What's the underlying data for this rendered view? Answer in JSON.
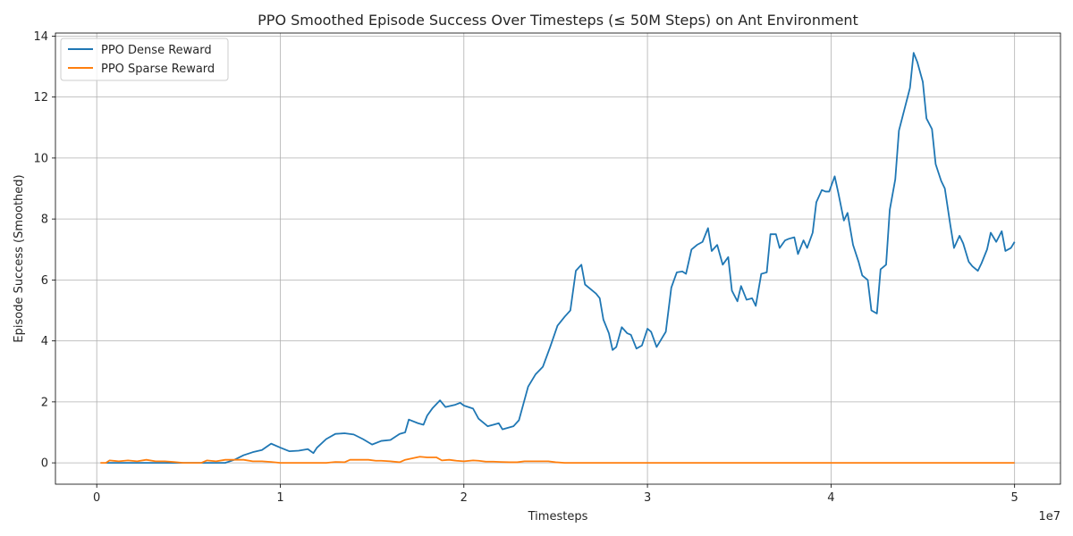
{
  "chart_data": {
    "type": "line",
    "title": "PPO Smoothed Episode Success Over Timesteps (≤ 50M Steps) on Ant Environment",
    "xlabel": "Timesteps",
    "ylabel": "Episode Success (Smoothed)",
    "x_offset_label": "1e7",
    "xlim": [
      -2250000,
      52500000
    ],
    "ylim": [
      -0.7,
      14.1
    ],
    "x_ticks": [
      0,
      10000000,
      20000000,
      30000000,
      40000000,
      50000000
    ],
    "x_tick_labels": [
      "0",
      "1",
      "2",
      "3",
      "4",
      "5"
    ],
    "y_ticks": [
      0,
      2,
      4,
      6,
      8,
      10,
      12,
      14
    ],
    "y_tick_labels": [
      "0",
      "2",
      "4",
      "6",
      "8",
      "10",
      "12",
      "14"
    ],
    "grid": true,
    "legend_position": "top-left",
    "series": [
      {
        "name": "PPO Dense Reward",
        "color": "#1f77b4",
        "points": [
          [
            500000,
            0
          ],
          [
            1000000,
            0
          ],
          [
            2000000,
            0
          ],
          [
            3000000,
            0
          ],
          [
            4000000,
            0
          ],
          [
            5000000,
            0
          ],
          [
            6000000,
            0
          ],
          [
            7000000,
            0
          ],
          [
            7500000,
            0.1
          ],
          [
            8000000,
            0.25
          ],
          [
            8500000,
            0.35
          ],
          [
            9000000,
            0.42
          ],
          [
            9500000,
            0.63
          ],
          [
            10000000,
            0.5
          ],
          [
            10500000,
            0.38
          ],
          [
            11000000,
            0.4
          ],
          [
            11500000,
            0.45
          ],
          [
            11800000,
            0.32
          ],
          [
            12000000,
            0.5
          ],
          [
            12500000,
            0.78
          ],
          [
            13000000,
            0.95
          ],
          [
            13500000,
            0.97
          ],
          [
            14000000,
            0.93
          ],
          [
            14500000,
            0.78
          ],
          [
            15000000,
            0.6
          ],
          [
            15500000,
            0.72
          ],
          [
            16000000,
            0.75
          ],
          [
            16500000,
            0.95
          ],
          [
            16800000,
            1.0
          ],
          [
            17000000,
            1.42
          ],
          [
            17500000,
            1.3
          ],
          [
            17800000,
            1.25
          ],
          [
            18000000,
            1.55
          ],
          [
            18300000,
            1.8
          ],
          [
            18700000,
            2.05
          ],
          [
            19000000,
            1.83
          ],
          [
            19500000,
            1.9
          ],
          [
            19800000,
            1.97
          ],
          [
            20000000,
            1.88
          ],
          [
            20500000,
            1.78
          ],
          [
            20800000,
            1.45
          ],
          [
            21300000,
            1.2
          ],
          [
            21600000,
            1.25
          ],
          [
            21900000,
            1.3
          ],
          [
            22100000,
            1.1
          ],
          [
            22400000,
            1.15
          ],
          [
            22700000,
            1.2
          ],
          [
            23000000,
            1.4
          ],
          [
            23500000,
            2.5
          ],
          [
            23900000,
            2.9
          ],
          [
            24300000,
            3.15
          ],
          [
            24700000,
            3.8
          ],
          [
            25100000,
            4.5
          ],
          [
            25500000,
            4.8
          ],
          [
            25800000,
            5.0
          ],
          [
            26100000,
            6.3
          ],
          [
            26400000,
            6.5
          ],
          [
            26600000,
            5.85
          ],
          [
            26900000,
            5.7
          ],
          [
            27200000,
            5.55
          ],
          [
            27400000,
            5.4
          ],
          [
            27600000,
            4.7
          ],
          [
            27900000,
            4.25
          ],
          [
            28100000,
            3.7
          ],
          [
            28300000,
            3.8
          ],
          [
            28600000,
            4.45
          ],
          [
            28900000,
            4.25
          ],
          [
            29100000,
            4.2
          ],
          [
            29400000,
            3.75
          ],
          [
            29700000,
            3.85
          ],
          [
            30000000,
            4.4
          ],
          [
            30200000,
            4.3
          ],
          [
            30500000,
            3.8
          ],
          [
            30800000,
            4.1
          ],
          [
            31000000,
            4.3
          ],
          [
            31300000,
            5.75
          ],
          [
            31600000,
            6.25
          ],
          [
            31900000,
            6.28
          ],
          [
            32100000,
            6.2
          ],
          [
            32400000,
            7.0
          ],
          [
            32700000,
            7.15
          ],
          [
            33000000,
            7.25
          ],
          [
            33300000,
            7.7
          ],
          [
            33500000,
            6.95
          ],
          [
            33800000,
            7.15
          ],
          [
            34100000,
            6.5
          ],
          [
            34400000,
            6.75
          ],
          [
            34600000,
            5.65
          ],
          [
            34900000,
            5.3
          ],
          [
            35100000,
            5.8
          ],
          [
            35400000,
            5.35
          ],
          [
            35700000,
            5.4
          ],
          [
            35900000,
            5.15
          ],
          [
            36200000,
            6.2
          ],
          [
            36500000,
            6.25
          ],
          [
            36700000,
            7.5
          ],
          [
            37000000,
            7.5
          ],
          [
            37200000,
            7.05
          ],
          [
            37500000,
            7.3
          ],
          [
            37700000,
            7.35
          ],
          [
            38000000,
            7.4
          ],
          [
            38200000,
            6.85
          ],
          [
            38500000,
            7.3
          ],
          [
            38700000,
            7.05
          ],
          [
            39000000,
            7.55
          ],
          [
            39200000,
            8.55
          ],
          [
            39500000,
            8.95
          ],
          [
            39700000,
            8.9
          ],
          [
            39900000,
            8.9
          ],
          [
            40200000,
            9.4
          ],
          [
            40400000,
            8.85
          ],
          [
            40700000,
            7.95
          ],
          [
            40900000,
            8.2
          ],
          [
            41200000,
            7.15
          ],
          [
            41500000,
            6.6
          ],
          [
            41700000,
            6.15
          ],
          [
            42000000,
            6.0
          ],
          [
            42200000,
            5.0
          ],
          [
            42500000,
            4.9
          ],
          [
            42700000,
            6.35
          ],
          [
            43000000,
            6.5
          ],
          [
            43200000,
            8.3
          ],
          [
            43500000,
            9.3
          ],
          [
            43700000,
            10.9
          ],
          [
            44000000,
            11.6
          ],
          [
            44300000,
            12.3
          ],
          [
            44500000,
            13.45
          ],
          [
            44700000,
            13.15
          ],
          [
            45000000,
            12.5
          ],
          [
            45200000,
            11.3
          ],
          [
            45500000,
            10.95
          ],
          [
            45700000,
            9.8
          ],
          [
            46000000,
            9.25
          ],
          [
            46200000,
            9.0
          ],
          [
            46500000,
            7.8
          ],
          [
            46700000,
            7.05
          ],
          [
            47000000,
            7.45
          ],
          [
            47200000,
            7.2
          ],
          [
            47500000,
            6.6
          ],
          [
            47700000,
            6.45
          ],
          [
            48000000,
            6.3
          ],
          [
            48200000,
            6.55
          ],
          [
            48500000,
            7.0
          ],
          [
            48700000,
            7.55
          ],
          [
            49000000,
            7.25
          ],
          [
            49300000,
            7.6
          ],
          [
            49500000,
            6.95
          ],
          [
            49800000,
            7.05
          ],
          [
            50000000,
            7.25
          ]
        ]
      },
      {
        "name": "PPO Sparse Reward",
        "color": "#ff7f0e",
        "points": [
          [
            200000,
            0
          ],
          [
            500000,
            0
          ],
          [
            700000,
            0.08
          ],
          [
            1200000,
            0.05
          ],
          [
            1700000,
            0.08
          ],
          [
            2200000,
            0.05
          ],
          [
            2700000,
            0.1
          ],
          [
            3200000,
            0.05
          ],
          [
            3700000,
            0.05
          ],
          [
            4200000,
            0.03
          ],
          [
            4700000,
            0
          ],
          [
            5200000,
            0
          ],
          [
            5700000,
            0
          ],
          [
            6000000,
            0.08
          ],
          [
            6500000,
            0.05
          ],
          [
            7000000,
            0.1
          ],
          [
            7500000,
            0.1
          ],
          [
            8000000,
            0.1
          ],
          [
            8500000,
            0.05
          ],
          [
            9000000,
            0.05
          ],
          [
            9500000,
            0.03
          ],
          [
            10000000,
            0
          ],
          [
            11000000,
            0
          ],
          [
            12000000,
            0
          ],
          [
            12500000,
            0
          ],
          [
            13000000,
            0.03
          ],
          [
            13500000,
            0.02
          ],
          [
            13800000,
            0.1
          ],
          [
            14200000,
            0.1
          ],
          [
            14800000,
            0.1
          ],
          [
            15200000,
            0.07
          ],
          [
            15500000,
            0.07
          ],
          [
            16000000,
            0.05
          ],
          [
            16500000,
            0.02
          ],
          [
            16800000,
            0.1
          ],
          [
            17200000,
            0.15
          ],
          [
            17600000,
            0.2
          ],
          [
            18000000,
            0.18
          ],
          [
            18500000,
            0.18
          ],
          [
            18800000,
            0.08
          ],
          [
            19200000,
            0.1
          ],
          [
            19600000,
            0.07
          ],
          [
            20000000,
            0.05
          ],
          [
            20500000,
            0.08
          ],
          [
            20800000,
            0.07
          ],
          [
            21200000,
            0.04
          ],
          [
            21600000,
            0.04
          ],
          [
            22000000,
            0.03
          ],
          [
            22500000,
            0.02
          ],
          [
            22900000,
            0.02
          ],
          [
            23300000,
            0.05
          ],
          [
            23800000,
            0.05
          ],
          [
            24200000,
            0.05
          ],
          [
            24600000,
            0.05
          ],
          [
            25000000,
            0.02
          ],
          [
            25500000,
            0
          ],
          [
            30000000,
            0
          ],
          [
            35000000,
            0
          ],
          [
            40000000,
            0
          ],
          [
            45000000,
            0
          ],
          [
            50000000,
            0
          ]
        ]
      }
    ]
  }
}
